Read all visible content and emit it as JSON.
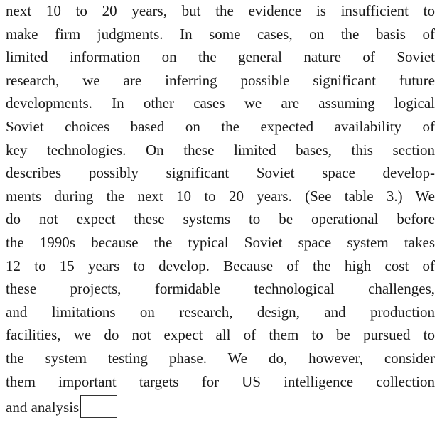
{
  "paragraph": {
    "lines": [
      "next 10 to 20 years, but the evidence is insufficient to",
      "make firm judgments. In some cases, on the basis of",
      "limited information on the general nature of Soviet",
      "research, we are inferring possible significant future",
      "developments. In other cases we are assuming logical",
      "Soviet choices based on the expected availability of",
      "key technologies. On these limited bases, this section",
      "describes possibly significant Soviet space develop-",
      "ments during the next 10 to 20 years. (See table 3.) We",
      "do not expect these systems to be operational before",
      "the 1990s because the typical Soviet space system takes",
      "12 to 15 years to develop. Because of the high cost of",
      "these projects, formidable technological challenges,",
      "and limitations on research, design, and production",
      "facilities, we do not expect all of them to be pursued to",
      "the system testing phase. We do, however, consider",
      "them important targets for US intelligence collection",
      "and analysis"
    ]
  }
}
